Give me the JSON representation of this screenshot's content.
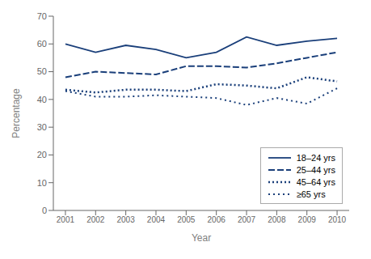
{
  "chart_data": {
    "type": "line",
    "xlabel": "Year",
    "ylabel": "Percentage",
    "x": [
      2001,
      2002,
      2003,
      2004,
      2005,
      2006,
      2007,
      2008,
      2009,
      2010
    ],
    "xlim": [
      2000.6,
      2010.4
    ],
    "xticks": [
      2001,
      2002,
      2003,
      2004,
      2005,
      2006,
      2007,
      2008,
      2009,
      2010
    ],
    "ylim": [
      0,
      70
    ],
    "yticks": [
      0,
      10,
      20,
      30,
      40,
      50,
      60,
      70
    ],
    "grid": false,
    "legend": "lower right",
    "series": [
      {
        "name": "18–24 yrs",
        "color": "#1a3f7a",
        "line_style": "solid",
        "values": [
          60,
          57,
          59.5,
          58,
          55,
          57,
          62.5,
          59.5,
          61,
          62
        ]
      },
      {
        "name": "25–44 yrs",
        "color": "#1a3f7a",
        "line_style": "longdash",
        "values": [
          48,
          50,
          49.5,
          49,
          52,
          52,
          51.5,
          53,
          55,
          57
        ]
      },
      {
        "name": "45–64 yrs",
        "color": "#1a3f7a",
        "line_style": "dotted",
        "values": [
          43.5,
          42.5,
          43.5,
          43.5,
          43,
          45.5,
          45,
          44,
          48,
          46.5
        ]
      },
      {
        "name": "≥65 yrs",
        "color": "#1a3f7a",
        "line_style": "shortdash",
        "values": [
          43,
          41,
          41,
          41.5,
          41,
          40.5,
          38,
          40.5,
          38.5,
          44
        ]
      }
    ]
  }
}
